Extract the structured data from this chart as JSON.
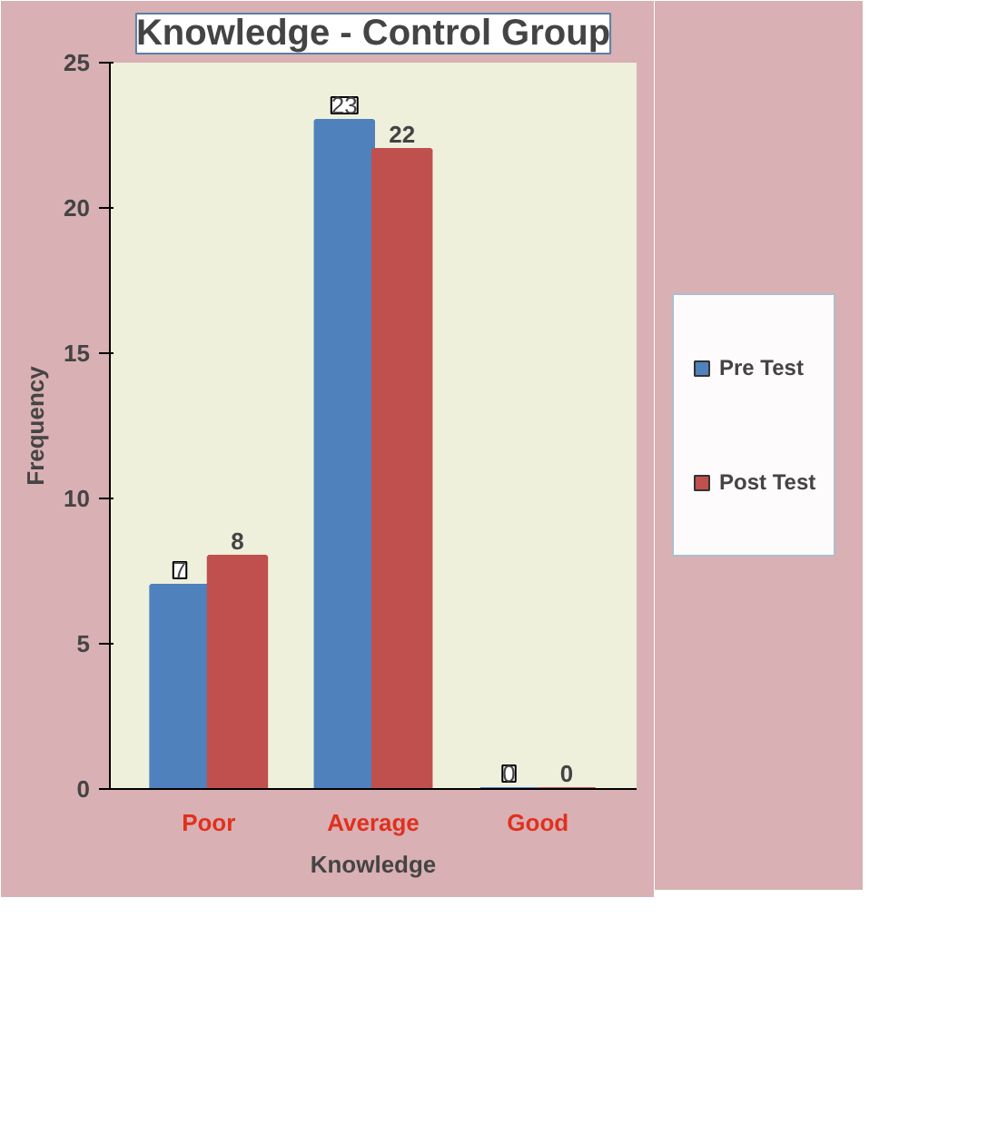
{
  "chart_data": {
    "type": "bar",
    "title": "Knowledge - Control Group",
    "xlabel": "Knowledge",
    "ylabel": "Frequency",
    "categories": [
      "Poor",
      "Average",
      "Good"
    ],
    "series": [
      {
        "name": "Pre Test",
        "color": "#4f81bd",
        "values": [
          7,
          23,
          0
        ]
      },
      {
        "name": "Post Test",
        "color": "#c0504d",
        "values": [
          8,
          22,
          0
        ]
      }
    ],
    "ylim": [
      0,
      25
    ],
    "yticks": [
      0,
      5,
      10,
      15,
      20,
      25
    ],
    "grid": false,
    "legend": "right",
    "data_labels": true
  }
}
